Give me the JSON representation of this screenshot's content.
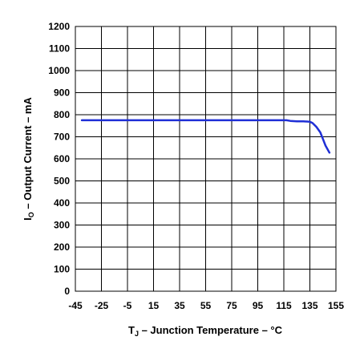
{
  "chart_data": {
    "type": "line",
    "title": "",
    "xlabel": {
      "main": "T",
      "sub": "J",
      "rest": " – Junction Temperature – °C"
    },
    "ylabel": {
      "main": "I",
      "sub": "O",
      "rest": " – Output Current – mA"
    },
    "xlim": [
      -45,
      155
    ],
    "ylim": [
      0,
      1200
    ],
    "x_ticks": [
      "-45",
      "-25",
      "-5",
      "15",
      "35",
      "55",
      "75",
      "95",
      "115",
      "135",
      "155"
    ],
    "y_ticks": [
      "0",
      "100",
      "200",
      "300",
      "400",
      "500",
      "600",
      "700",
      "800",
      "900",
      "1000",
      "1100",
      "1200"
    ],
    "grid": true,
    "series": [
      {
        "color": "#1f2fd6",
        "x": [
          -40,
          0,
          50,
          100,
          117,
          120,
          125,
          130,
          135,
          137,
          140,
          143,
          145,
          147,
          150
        ],
        "y": [
          775,
          775,
          775,
          775,
          775,
          772,
          770,
          770,
          768,
          762,
          745,
          720,
          690,
          660,
          628
        ]
      }
    ]
  }
}
